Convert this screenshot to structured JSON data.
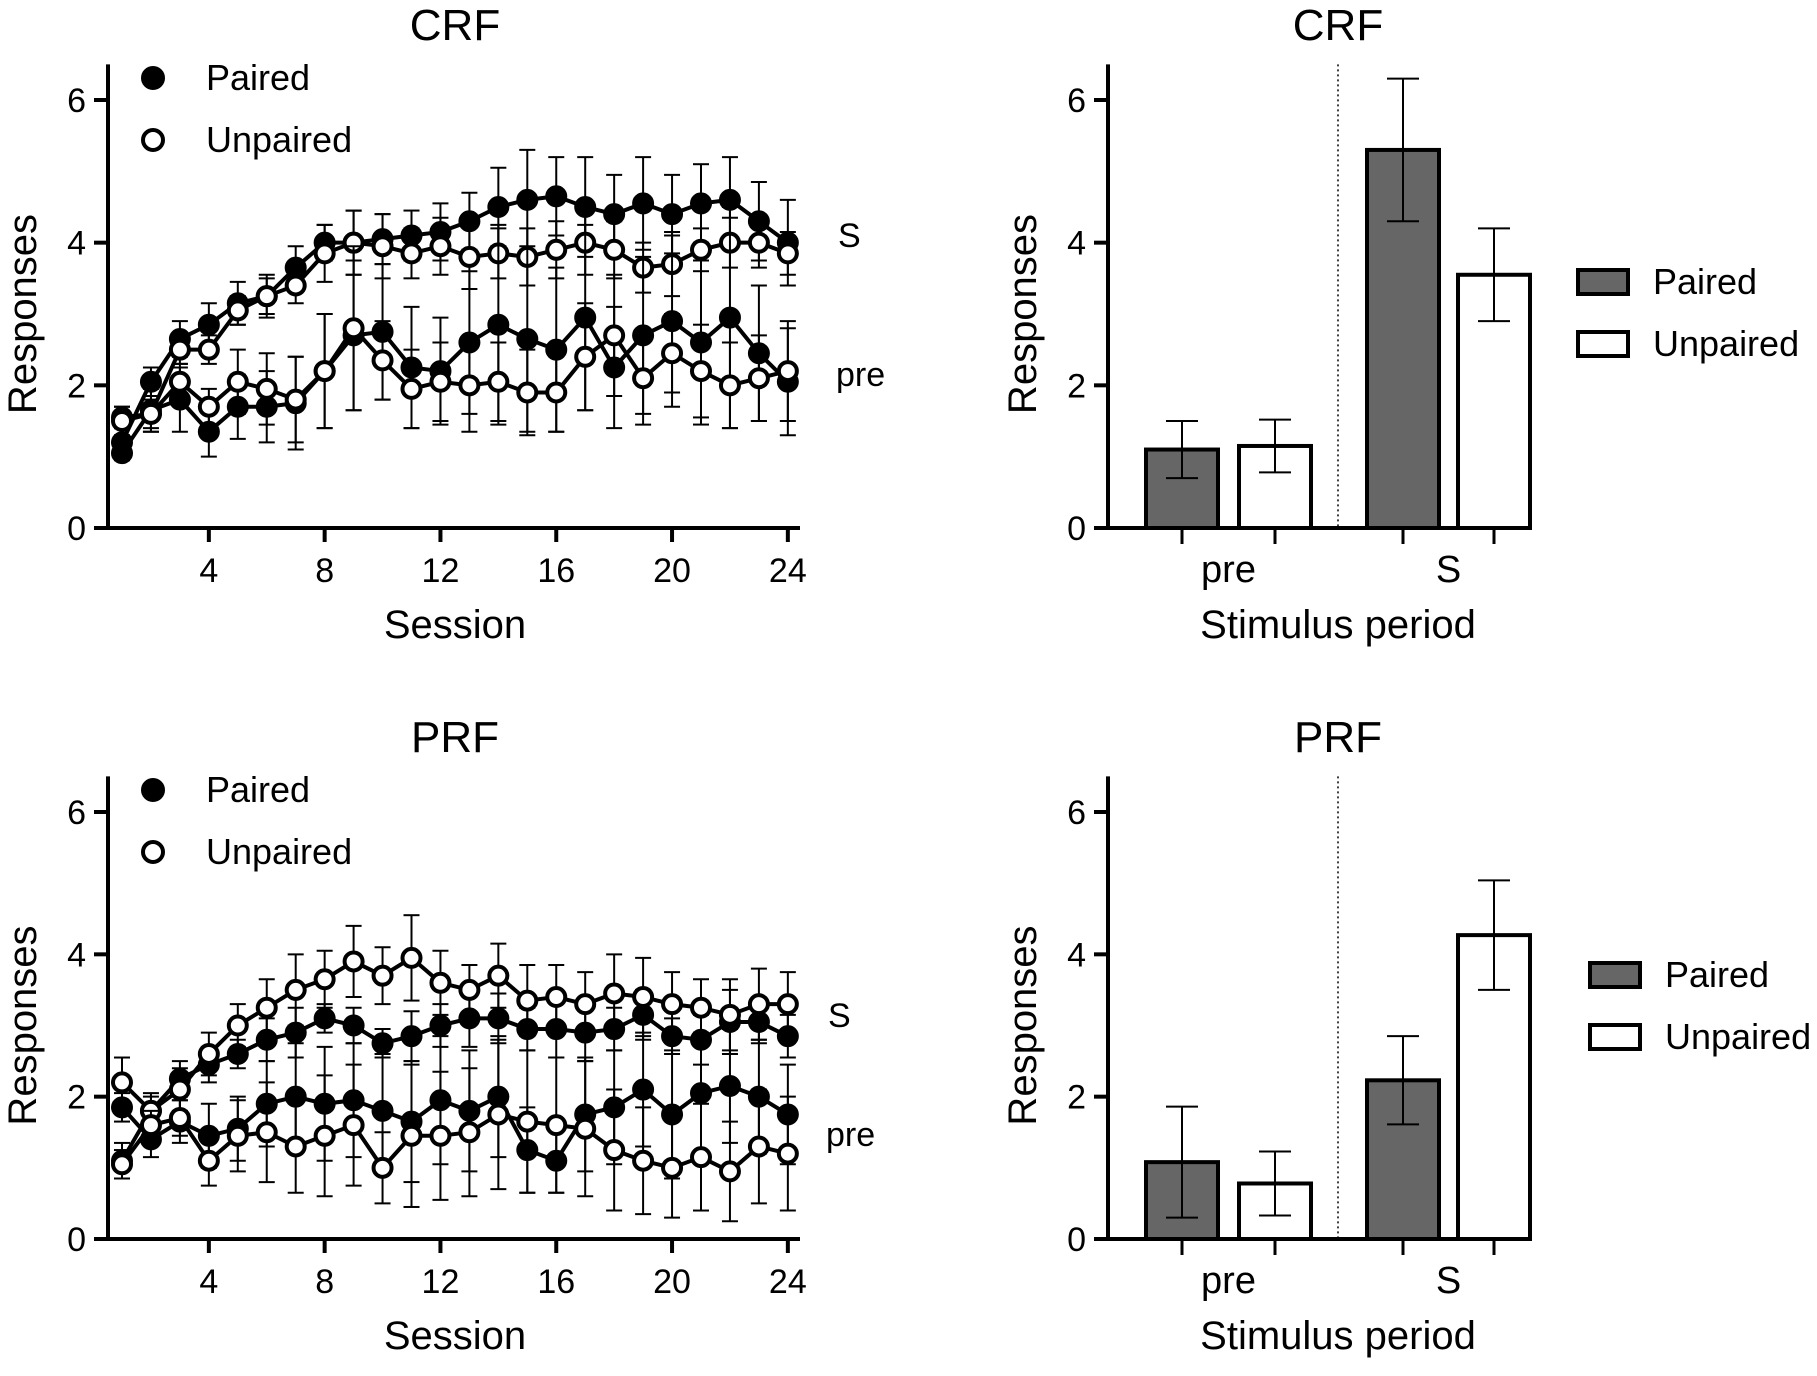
{
  "chart_data": [
    {
      "type": "line",
      "title": "CRF",
      "xlabel": "Session",
      "ylabel": "Responses",
      "xlim": [
        0.5,
        24
      ],
      "ylim": [
        0,
        6.5
      ],
      "xticks": [
        4,
        8,
        12,
        16,
        20,
        24
      ],
      "yticks": [
        0,
        2,
        4,
        6
      ],
      "legend": [
        {
          "label": "Paired",
          "marker": "filled-circle"
        },
        {
          "label": "Unpaired",
          "marker": "open-circle"
        }
      ],
      "legend_position": "top-left",
      "annotations": [
        "S",
        "pre"
      ],
      "x": [
        1,
        2,
        3,
        4,
        5,
        6,
        7,
        8,
        9,
        10,
        11,
        12,
        13,
        14,
        15,
        16,
        17,
        18,
        19,
        20,
        21,
        22,
        23,
        24
      ],
      "series": [
        {
          "name": "Paired S",
          "filled": true,
          "values": [
            1.2,
            2.05,
            2.65,
            2.85,
            3.15,
            3.25,
            3.65,
            4.0,
            4.0,
            4.05,
            4.1,
            4.15,
            4.3,
            4.5,
            4.6,
            4.65,
            4.5,
            4.4,
            4.55,
            4.4,
            4.55,
            4.6,
            4.3,
            4.0
          ],
          "error": [
            0.2,
            0.2,
            0.25,
            0.3,
            0.3,
            0.3,
            0.3,
            0.25,
            0.45,
            0.35,
            0.35,
            0.4,
            0.4,
            0.55,
            0.7,
            0.55,
            0.7,
            0.55,
            0.65,
            0.55,
            0.55,
            0.6,
            0.55,
            0.6
          ]
        },
        {
          "name": "Unpaired S",
          "filled": false,
          "values": [
            1.55,
            1.6,
            2.5,
            2.5,
            3.05,
            3.25,
            3.4,
            3.85,
            4.0,
            3.95,
            3.85,
            3.95,
            3.8,
            3.85,
            3.8,
            3.9,
            4.0,
            3.9,
            3.65,
            3.7,
            3.9,
            4.0,
            4.0,
            3.85
          ],
          "error": [
            0.15,
            0.25,
            0.2,
            0.2,
            0.2,
            0.25,
            0.25,
            0.4,
            0.45,
            0.45,
            0.35,
            0.4,
            0.45,
            0.35,
            0.4,
            0.4,
            0.45,
            0.4,
            0.35,
            0.45,
            0.3,
            0.35,
            0.35,
            0.3
          ]
        },
        {
          "name": "Paired pre",
          "filled": true,
          "values": [
            1.05,
            1.65,
            1.8,
            1.35,
            1.7,
            1.7,
            1.75,
            2.2,
            2.7,
            2.75,
            2.25,
            2.2,
            2.6,
            2.85,
            2.65,
            2.5,
            2.95,
            2.25,
            2.7,
            2.9,
            2.6,
            2.95,
            2.45,
            2.05
          ],
          "error": [
            0.1,
            0.3,
            0.45,
            0.35,
            0.45,
            0.5,
            0.65,
            0.8,
            1.05,
            0.95,
            0.85,
            0.75,
            1.0,
            1.4,
            1.3,
            1.15,
            1.3,
            0.85,
            1.1,
            1.2,
            1.15,
            1.55,
            0.95,
            0.75
          ]
        },
        {
          "name": "Unpaired pre",
          "filled": false,
          "values": [
            1.5,
            1.6,
            2.05,
            1.7,
            2.05,
            1.95,
            1.8,
            2.2,
            2.8,
            2.35,
            1.95,
            2.05,
            2.0,
            2.05,
            1.9,
            1.9,
            2.4,
            2.7,
            2.1,
            2.45,
            2.2,
            2.0,
            2.1,
            2.2
          ],
          "error": [
            0.2,
            0.2,
            0.25,
            0.25,
            0.45,
            0.5,
            0.6,
            0.8,
            1.15,
            0.55,
            0.55,
            0.55,
            0.65,
            0.55,
            0.6,
            0.55,
            0.75,
            0.85,
            0.65,
            0.55,
            0.65,
            0.6,
            0.6,
            0.7
          ]
        }
      ]
    },
    {
      "type": "bar",
      "title": "CRF",
      "xlabel": "Stimulus period",
      "ylabel": "Responses",
      "categories": [
        "pre",
        "S"
      ],
      "ylim": [
        0,
        6.5
      ],
      "yticks": [
        0,
        2,
        4,
        6
      ],
      "legend_position": "right",
      "series": [
        {
          "name": "Paired",
          "color": "#666666",
          "values": [
            1.1,
            5.3
          ],
          "error": [
            0.4,
            1.0
          ]
        },
        {
          "name": "Unpaired",
          "color": "#ffffff",
          "values": [
            1.15,
            3.55
          ],
          "error": [
            0.37,
            0.65
          ]
        }
      ]
    },
    {
      "type": "line",
      "title": "PRF",
      "xlabel": "Session",
      "ylabel": "Responses",
      "xlim": [
        0.5,
        24
      ],
      "ylim": [
        0,
        6.5
      ],
      "xticks": [
        4,
        8,
        12,
        16,
        20,
        24
      ],
      "yticks": [
        0,
        2,
        4,
        6
      ],
      "legend": [
        {
          "label": "Paired",
          "marker": "filled-circle"
        },
        {
          "label": "Unpaired",
          "marker": "open-circle"
        }
      ],
      "legend_position": "top-left",
      "annotations": [
        "S",
        "pre"
      ],
      "x": [
        1,
        2,
        3,
        4,
        5,
        6,
        7,
        8,
        9,
        10,
        11,
        12,
        13,
        14,
        15,
        16,
        17,
        18,
        19,
        20,
        21,
        22,
        23,
        24
      ],
      "series": [
        {
          "name": "Paired S",
          "filled": true,
          "values": [
            1.1,
            1.8,
            2.25,
            2.45,
            2.6,
            2.8,
            2.9,
            3.1,
            3.0,
            2.75,
            2.85,
            3.0,
            3.1,
            3.1,
            2.95,
            2.95,
            2.9,
            2.95,
            3.15,
            2.85,
            2.8,
            3.05,
            3.05,
            2.85
          ],
          "error": [
            0.25,
            0.2,
            0.25,
            0.25,
            0.2,
            0.3,
            0.35,
            0.2,
            0.25,
            0.2,
            0.35,
            0.3,
            0.4,
            0.35,
            0.3,
            0.4,
            0.4,
            0.3,
            0.35,
            0.25,
            0.35,
            0.45,
            0.3,
            0.3
          ]
        },
        {
          "name": "Unpaired S",
          "filled": false,
          "values": [
            2.2,
            1.8,
            2.1,
            2.6,
            3.0,
            3.25,
            3.5,
            3.65,
            3.9,
            3.7,
            3.95,
            3.6,
            3.5,
            3.7,
            3.35,
            3.4,
            3.3,
            3.45,
            3.4,
            3.3,
            3.25,
            3.15,
            3.3,
            3.3
          ],
          "error": [
            0.35,
            0.25,
            0.3,
            0.3,
            0.3,
            0.4,
            0.5,
            0.4,
            0.5,
            0.4,
            0.6,
            0.45,
            0.35,
            0.45,
            0.5,
            0.45,
            0.45,
            0.55,
            0.55,
            0.45,
            0.4,
            0.5,
            0.5,
            0.45
          ]
        },
        {
          "name": "Paired pre",
          "filled": true,
          "values": [
            1.85,
            1.4,
            1.65,
            1.45,
            1.55,
            1.9,
            2.0,
            1.9,
            1.95,
            1.8,
            1.65,
            1.95,
            1.8,
            2.0,
            1.25,
            1.1,
            1.75,
            1.85,
            2.1,
            1.75,
            2.05,
            2.15,
            2.0,
            1.75
          ],
          "error": [
            0.2,
            0.25,
            0.3,
            0.45,
            0.45,
            0.6,
            0.75,
            0.8,
            0.8,
            0.8,
            0.85,
            0.9,
            0.85,
            0.85,
            0.6,
            0.45,
            0.8,
            0.8,
            0.8,
            0.9,
            0.85,
            0.8,
            0.8,
            0.7
          ]
        },
        {
          "name": "Unpaired pre",
          "filled": false,
          "values": [
            1.05,
            1.6,
            1.7,
            1.1,
            1.45,
            1.5,
            1.3,
            1.45,
            1.6,
            1.0,
            1.45,
            1.45,
            1.5,
            1.75,
            1.65,
            1.6,
            1.55,
            1.25,
            1.1,
            1.0,
            1.15,
            0.95,
            1.3,
            1.2
          ],
          "error": [
            0.2,
            0.2,
            0.25,
            0.35,
            0.5,
            0.7,
            0.65,
            0.85,
            0.85,
            0.5,
            1.0,
            0.9,
            0.9,
            1.05,
            1.0,
            0.95,
            0.95,
            0.85,
            0.75,
            0.7,
            0.75,
            0.7,
            0.8,
            0.8
          ]
        }
      ]
    },
    {
      "type": "bar",
      "title": "PRF",
      "xlabel": "Stimulus period",
      "ylabel": "Responses",
      "categories": [
        "pre",
        "S"
      ],
      "ylim": [
        0,
        6.5
      ],
      "yticks": [
        0,
        2,
        4,
        6
      ],
      "legend_position": "right",
      "series": [
        {
          "name": "Paired",
          "color": "#666666",
          "values": [
            1.08,
            2.23
          ],
          "error": [
            0.78,
            0.62
          ]
        },
        {
          "name": "Unpaired",
          "color": "#ffffff",
          "values": [
            0.78,
            4.27
          ],
          "error": [
            0.45,
            0.77
          ]
        }
      ]
    }
  ]
}
